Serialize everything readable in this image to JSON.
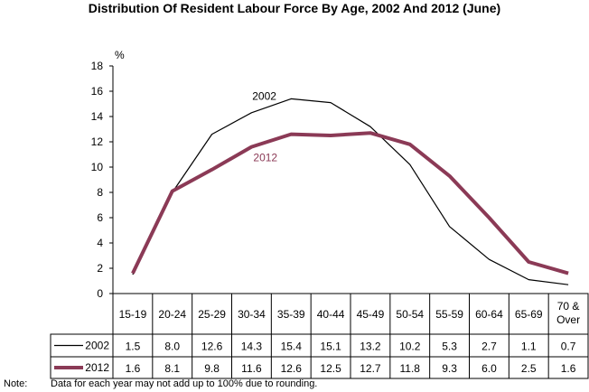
{
  "chart_data": {
    "type": "line",
    "title": "Distribution Of Resident Labour Force By Age, 2002 And 2012 (June)",
    "ylabel": "%",
    "ylim": [
      0,
      18
    ],
    "yticks": [
      "0",
      "2",
      "4",
      "6",
      "8",
      "10",
      "12",
      "14",
      "16",
      "18"
    ],
    "categories": [
      "15-19",
      "20-24",
      "25-29",
      "30-34",
      "35-39",
      "40-44",
      "45-49",
      "50-54",
      "55-59",
      "60-64",
      "65-69",
      "70 & Over"
    ],
    "series": [
      {
        "name": "2002",
        "color": "#000000",
        "values": [
          1.5,
          8.0,
          12.6,
          14.3,
          15.4,
          15.1,
          13.2,
          10.2,
          5.3,
          2.7,
          1.1,
          0.7
        ],
        "display": [
          "1.5",
          "8.0",
          "12.6",
          "14.3",
          "15.4",
          "15.1",
          "13.2",
          "10.2",
          "5.3",
          "2.7",
          "1.1",
          "0.7"
        ]
      },
      {
        "name": "2012",
        "color": "#8b3a56",
        "values": [
          1.6,
          8.1,
          9.8,
          11.6,
          12.6,
          12.5,
          12.7,
          11.8,
          9.3,
          6.0,
          2.5,
          1.6
        ],
        "display": [
          "1.6",
          "8.1",
          "9.8",
          "11.6",
          "12.6",
          "12.5",
          "12.7",
          "11.8",
          "9.3",
          "6.0",
          "2.5",
          "1.6"
        ]
      }
    ],
    "grid": false,
    "legend": "data-table"
  },
  "note": {
    "label": "Note:",
    "text": "Data for each year may not add up to 100% due to rounding."
  }
}
